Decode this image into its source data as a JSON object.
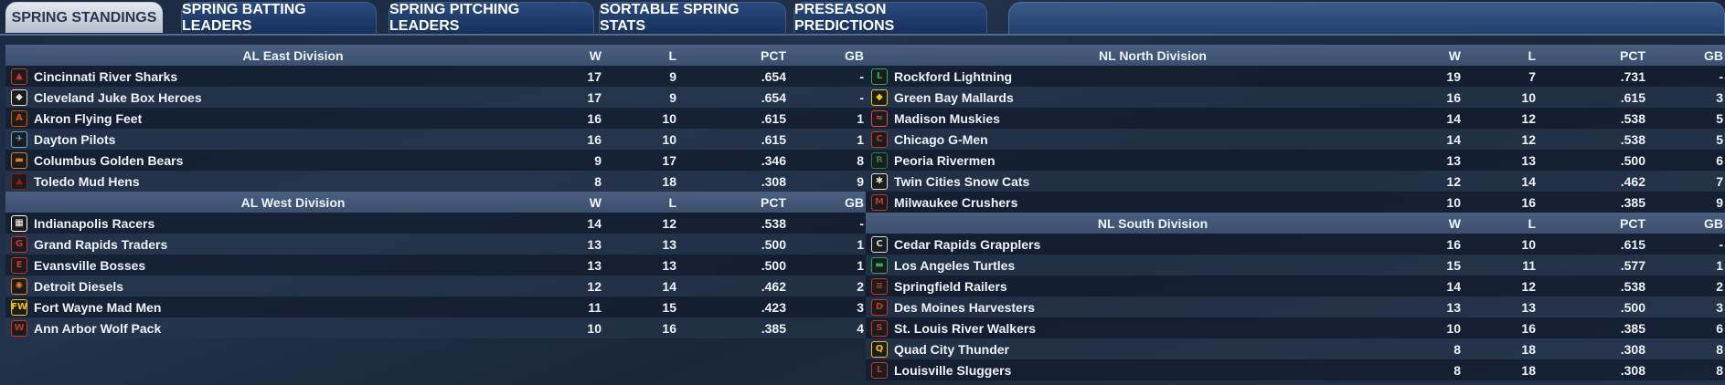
{
  "tabs": [
    {
      "label": "SPRING STANDINGS",
      "active": true
    },
    {
      "label": "SPRING BATTING LEADERS",
      "active": false
    },
    {
      "label": "SPRING PITCHING LEADERS",
      "active": false
    },
    {
      "label": "SORTABLE SPRING STATS",
      "active": false
    },
    {
      "label": "PRESEASON PREDICTIONS",
      "active": false
    }
  ],
  "columns": {
    "w": "W",
    "l": "L",
    "pct": "PCT",
    "gb": "GB"
  },
  "al_east": {
    "title": "AL East Division",
    "teams": [
      {
        "name": "Cincinnati River Sharks",
        "w": "17",
        "l": "9",
        "pct": ".654",
        "gb": "-",
        "logo": "shark-logo-icon",
        "color": "#c0392b"
      },
      {
        "name": "Cleveland Juke Box Heroes",
        "w": "17",
        "l": "9",
        "pct": ".654",
        "gb": "-",
        "logo": "diamond-logo-icon",
        "color": "#e0e0e0"
      },
      {
        "name": "Akron  Flying Feet",
        "w": "16",
        "l": "10",
        "pct": ".615",
        "gb": "1",
        "logo": "a-logo-icon",
        "color": "#d35400"
      },
      {
        "name": "Dayton Pilots",
        "w": "16",
        "l": "10",
        "pct": ".615",
        "gb": "1",
        "logo": "wings-logo-icon",
        "color": "#5dade2"
      },
      {
        "name": "Columbus Golden Bears",
        "w": "9",
        "l": "17",
        "pct": ".346",
        "gb": "8",
        "logo": "bear-logo-icon",
        "color": "#e67e22"
      },
      {
        "name": "Toledo  Mud Hens",
        "w": "8",
        "l": "18",
        "pct": ".308",
        "gb": "9",
        "logo": "hen-logo-icon",
        "color": "#8e1b1b"
      }
    ]
  },
  "al_west": {
    "title": "AL West Division",
    "teams": [
      {
        "name": "Indianapolis Racers",
        "w": "14",
        "l": "12",
        "pct": ".538",
        "gb": "-",
        "logo": "checkered-flag-logo-icon",
        "color": "#ffffff"
      },
      {
        "name": "Grand Rapids Traders",
        "w": "13",
        "l": "13",
        "pct": ".500",
        "gb": "1",
        "logo": "gr-logo-icon",
        "color": "#c0392b"
      },
      {
        "name": "Evansville Bosses",
        "w": "13",
        "l": "13",
        "pct": ".500",
        "gb": "1",
        "logo": "e-logo-icon",
        "color": "#c0392b"
      },
      {
        "name": "Detroit Diesels",
        "w": "12",
        "l": "14",
        "pct": ".462",
        "gb": "2",
        "logo": "gear-logo-icon",
        "color": "#e67e22"
      },
      {
        "name": "Fort Wayne Mad Men",
        "w": "11",
        "l": "15",
        "pct": ".423",
        "gb": "3",
        "logo": "fw-logo-icon",
        "color": "#f1c40f"
      },
      {
        "name": "Ann Arbor Wolf Pack",
        "w": "10",
        "l": "16",
        "pct": ".385",
        "gb": "4",
        "logo": "wolf-logo-icon",
        "color": "#c0392b"
      }
    ]
  },
  "nl_north": {
    "title": "NL North Division",
    "teams": [
      {
        "name": "Rockford Lightning",
        "w": "19",
        "l": "7",
        "pct": ".731",
        "gb": "-",
        "logo": "bolt-logo-icon",
        "color": "#27ae60"
      },
      {
        "name": "Green Bay  Mallards",
        "w": "16",
        "l": "10",
        "pct": ".615",
        "gb": "3",
        "logo": "duck-logo-icon",
        "color": "#f1c40f"
      },
      {
        "name": "Madison Muskies",
        "w": "14",
        "l": "12",
        "pct": ".538",
        "gb": "5",
        "logo": "fish-logo-icon",
        "color": "#e74c3c"
      },
      {
        "name": "Chicago G-Men",
        "w": "14",
        "l": "12",
        "pct": ".538",
        "gb": "5",
        "logo": "c-logo-icon",
        "color": "#c0392b"
      },
      {
        "name": "Peoria Rivermen",
        "w": "13",
        "l": "13",
        "pct": ".500",
        "gb": "6",
        "logo": "r-logo-icon",
        "color": "#1e8449"
      },
      {
        "name": "Twin Cities Snow Cats",
        "w": "12",
        "l": "14",
        "pct": ".462",
        "gb": "7",
        "logo": "snowflake-logo-icon",
        "color": "#dcdcdc"
      },
      {
        "name": "Milwaukee Crushers",
        "w": "10",
        "l": "16",
        "pct": ".385",
        "gb": "9",
        "logo": "m-logo-icon",
        "color": "#b03a2e"
      }
    ]
  },
  "nl_south": {
    "title": "NL South Division",
    "teams": [
      {
        "name": "Cedar Rapids Grapplers",
        "w": "16",
        "l": "10",
        "pct": ".615",
        "gb": "-",
        "logo": "cr-logo-icon",
        "color": "#d5d8dc"
      },
      {
        "name": "Los Angeles Turtles",
        "w": "15",
        "l": "11",
        "pct": ".577",
        "gb": "1",
        "logo": "turtle-logo-icon",
        "color": "#27ae60"
      },
      {
        "name": "Springfield Railers",
        "w": "14",
        "l": "12",
        "pct": ".538",
        "gb": "2",
        "logo": "rail-logo-icon",
        "color": "#c0392b"
      },
      {
        "name": "Des Moines Harvesters",
        "w": "13",
        "l": "13",
        "pct": ".500",
        "gb": "3",
        "logo": "dm-logo-icon",
        "color": "#c0392b"
      },
      {
        "name": "St. Louis River Walkers",
        "w": "10",
        "l": "16",
        "pct": ".385",
        "gb": "6",
        "logo": "s-logo-icon",
        "color": "#c0392b"
      },
      {
        "name": "Quad City Thunder",
        "w": "8",
        "l": "18",
        "pct": ".308",
        "gb": "8",
        "logo": "qc-logo-icon",
        "color": "#f1c40f"
      },
      {
        "name": "Louisville Sluggers",
        "w": "8",
        "l": "18",
        "pct": ".308",
        "gb": "8",
        "logo": "bat-logo-icon",
        "color": "#c0392b"
      }
    ]
  }
}
